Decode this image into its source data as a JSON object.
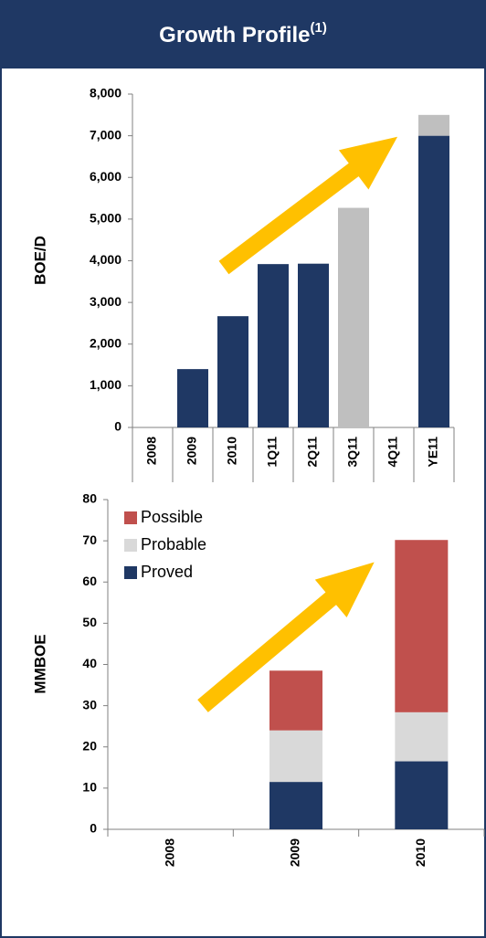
{
  "header": {
    "title": "Growth Profile",
    "superscript": "(1)"
  },
  "chart_data": [
    {
      "type": "bar",
      "stacked": true,
      "ylabel": "BOE/D",
      "categories": [
        "2008",
        "2009",
        "2010",
        "1Q11",
        "2Q11",
        "3Q11",
        "4Q11",
        "YE11"
      ],
      "series": [
        {
          "color": "#1f3864",
          "values": [
            null,
            1400,
            2670,
            3920,
            3930,
            null,
            null,
            7000
          ]
        },
        {
          "color": "#bfbfbf",
          "values": [
            null,
            null,
            null,
            null,
            null,
            5270,
            null,
            500
          ]
        }
      ],
      "ylim": [
        0,
        8000
      ],
      "yticks": [
        0,
        {
          "value": 1000,
          "label": "1,000"
        },
        {
          "value": 2000,
          "label": "2,000"
        },
        {
          "value": 3000,
          "label": "3,000"
        },
        {
          "value": 4000,
          "label": "4,000"
        },
        {
          "value": 5000,
          "label": "5,000"
        },
        {
          "value": 6000,
          "label": "6,000"
        },
        {
          "value": 7000,
          "label": "7,000"
        },
        {
          "value": 8000,
          "label": "8,000"
        }
      ]
    },
    {
      "type": "bar",
      "stacked": true,
      "ylabel": "MMBOE",
      "legend": "upper left",
      "categories": [
        "2008",
        "2009",
        "2010"
      ],
      "series": [
        {
          "name": "Proved",
          "color": "#1f3864",
          "values": [
            null,
            11.5,
            16.5
          ]
        },
        {
          "name": "Probable",
          "color": "#d9d9d9",
          "values": [
            null,
            12.5,
            11.9
          ]
        },
        {
          "name": "Possible",
          "color": "#c0504d",
          "values": [
            null,
            14.5,
            41.8
          ]
        }
      ],
      "ylim": [
        0,
        80
      ],
      "yticks": [
        0,
        10,
        20,
        30,
        40,
        50,
        60,
        70,
        80
      ]
    }
  ]
}
